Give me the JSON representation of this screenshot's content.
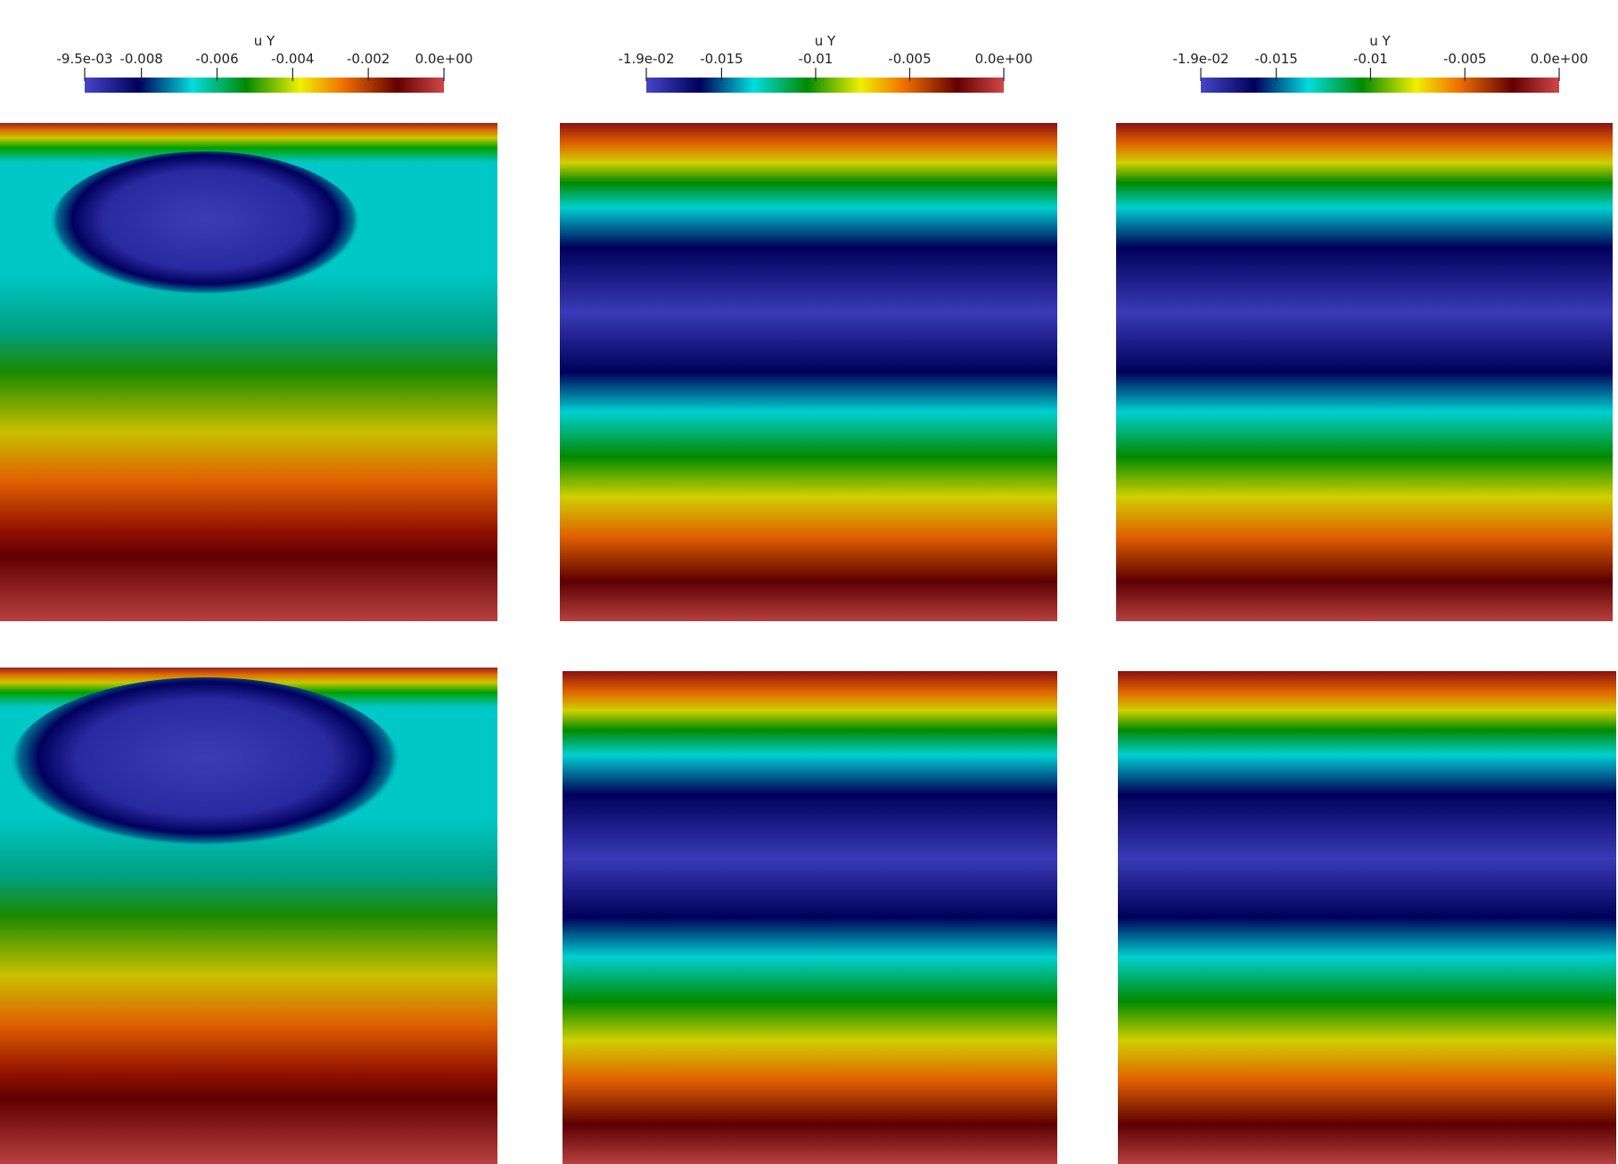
{
  "colorbars": [
    {
      "title": "u Y",
      "range": [
        -0.0095,
        0
      ],
      "ticks": [
        {
          "value": -0.0095,
          "label": "-9.5e-03"
        },
        -0.008,
        -0.006,
        -0.004,
        -0.002,
        {
          "value": 0,
          "label": "0.0e+00"
        }
      ]
    },
    {
      "title": "u Y",
      "range": [
        -0.019,
        0
      ],
      "ticks": [
        {
          "value": -0.019,
          "label": "-1.9e-02"
        },
        -0.015,
        -0.01,
        -0.005,
        {
          "value": 0,
          "label": "0.0e+00"
        }
      ]
    },
    {
      "title": "u Y",
      "range": [
        -0.019,
        0
      ],
      "ticks": [
        {
          "value": -0.019,
          "label": "-1.9e-02"
        },
        -0.015,
        -0.01,
        -0.005,
        {
          "value": 0,
          "label": "0.0e+00"
        }
      ]
    }
  ]
}
